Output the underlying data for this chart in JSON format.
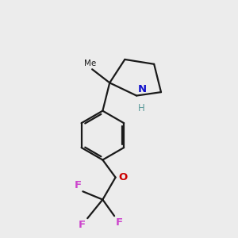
{
  "background_color": "#ececec",
  "bond_color": "#1a1a1a",
  "N_color": "#1010cc",
  "O_color": "#cc0000",
  "F_color": "#cc44cc",
  "H_color": "#5a9a9a",
  "line_width": 1.6,
  "figsize": [
    3.0,
    3.0
  ],
  "dpi": 100,
  "xlim": [
    0,
    10
  ],
  "ylim": [
    0,
    10
  ]
}
